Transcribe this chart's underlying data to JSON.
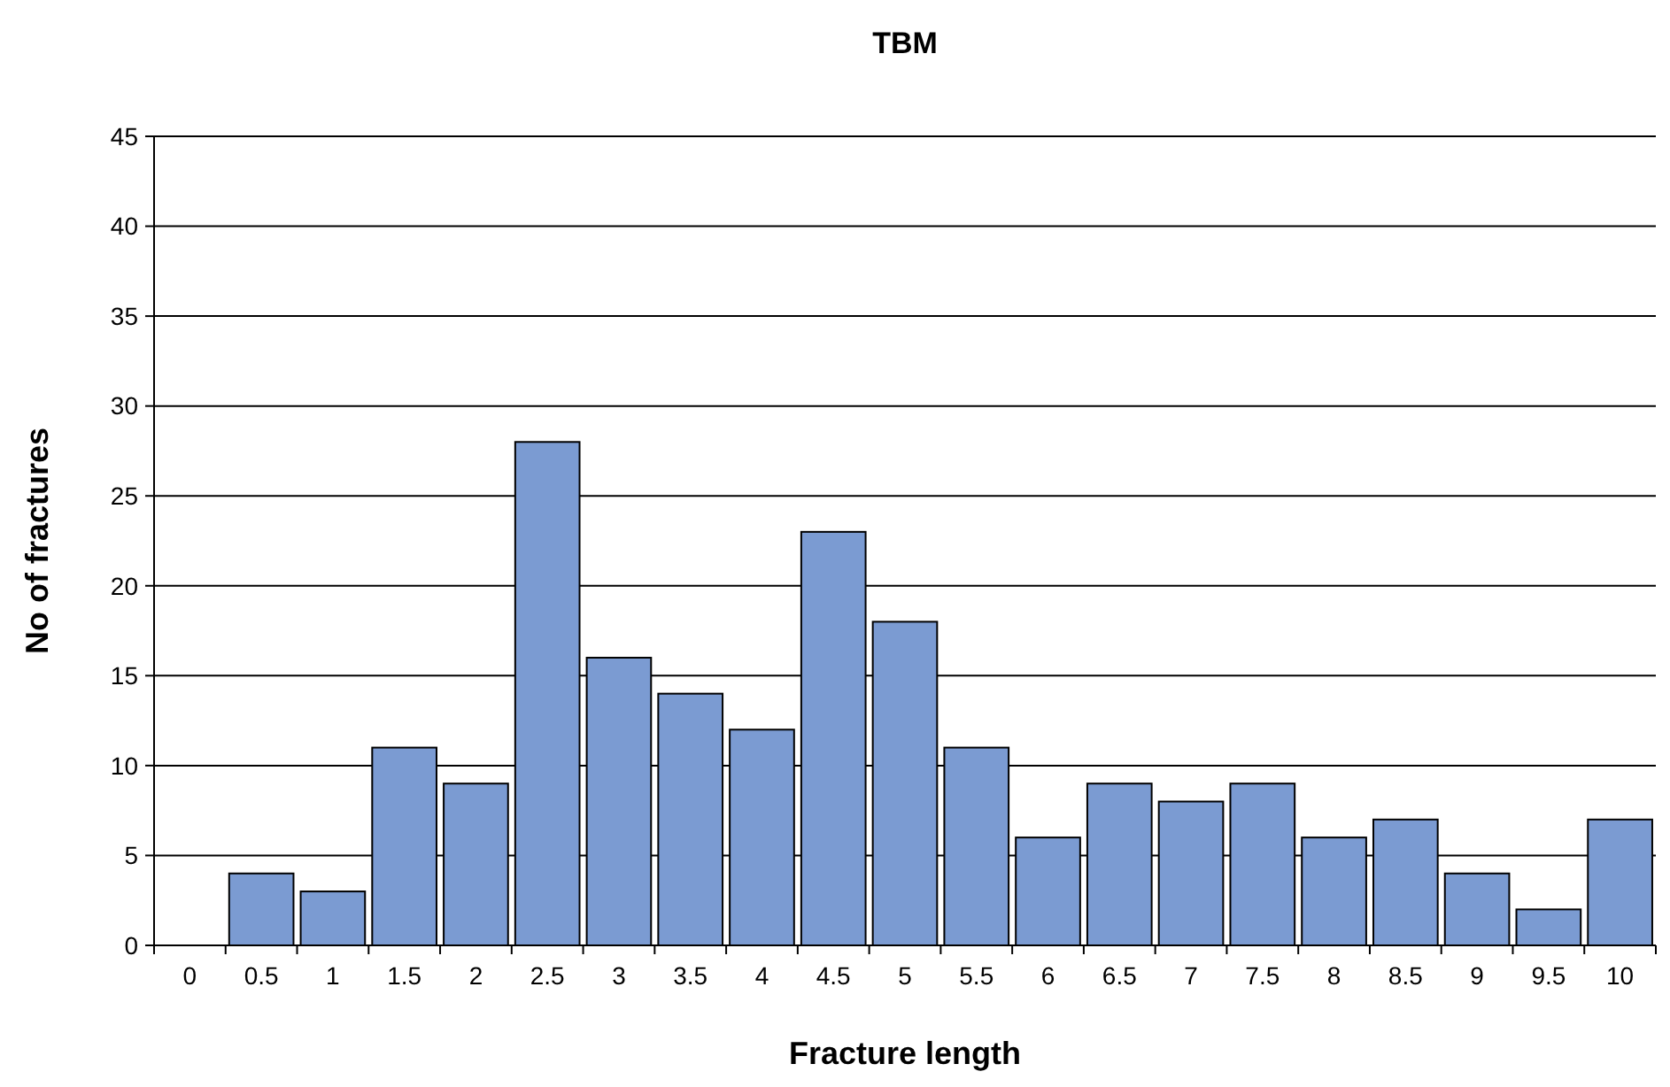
{
  "chart_data": {
    "type": "bar",
    "title": "TBM",
    "xlabel": "Fracture length",
    "ylabel": "No of fractures",
    "categories": [
      "0",
      "0.5",
      "1",
      "1.5",
      "2",
      "2.5",
      "3",
      "3.5",
      "4",
      "4.5",
      "5",
      "5.5",
      "6",
      "6.5",
      "7",
      "7.5",
      "8",
      "8.5",
      "9",
      "9.5",
      "10"
    ],
    "values": [
      null,
      4,
      3,
      11,
      9,
      28,
      16,
      14,
      12,
      23,
      18,
      11,
      6,
      9,
      8,
      9,
      6,
      7,
      4,
      2,
      7
    ],
    "color": "#7b9bd2",
    "ylim": [
      0,
      45
    ],
    "yticks": [
      0,
      5,
      10,
      15,
      20,
      25,
      30,
      35,
      40,
      45
    ],
    "grid": "y"
  }
}
